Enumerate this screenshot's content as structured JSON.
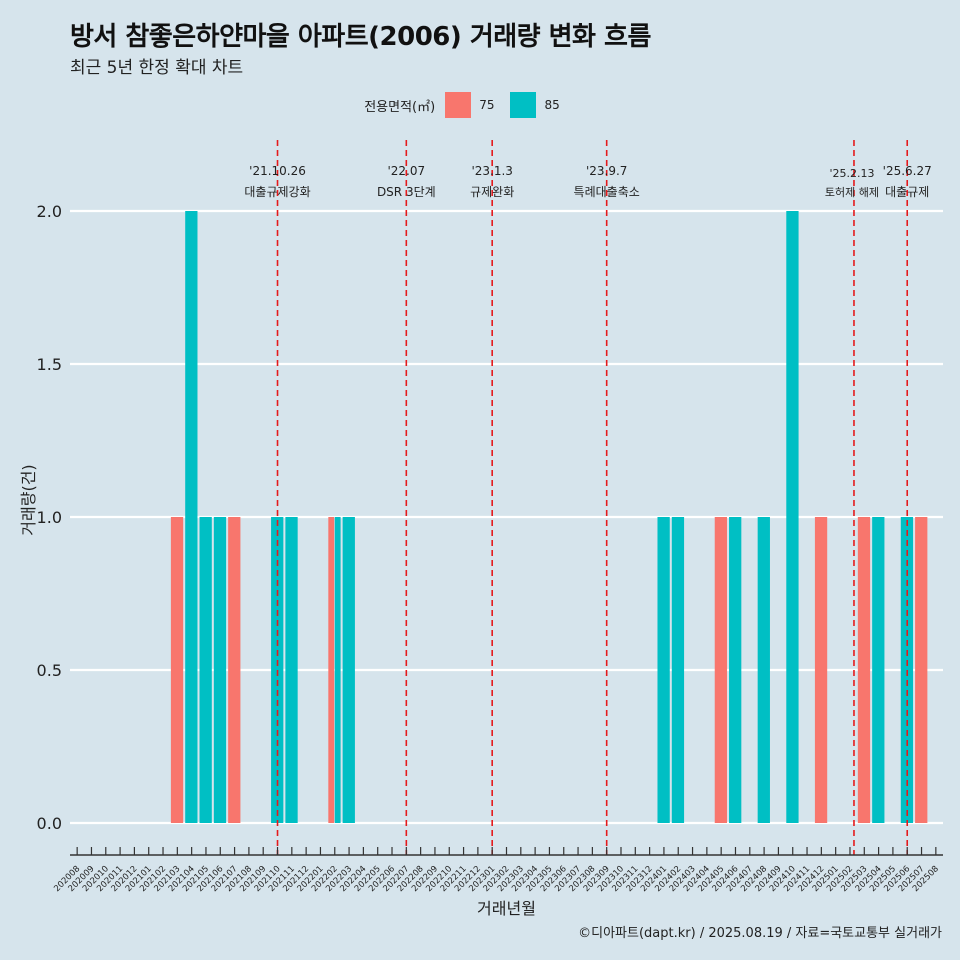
{
  "title": "방서 참좋은하얀마을 아파트(2006) 거래량 변화 흐름",
  "subtitle": "최근 5년 한정 확대 차트",
  "legend": {
    "title": "전용면적(㎡)",
    "items": [
      {
        "label": "75",
        "color": "#f8766d"
      },
      {
        "label": "85",
        "color": "#00bfc4"
      }
    ]
  },
  "caption": "©디아파트(dapt.kr) / 2025.08.19 / 자료=국토교통부 실거래가",
  "chart_data": {
    "type": "bar",
    "xlabel": "거래년월",
    "ylabel": "거래량(건)",
    "ylim": [
      0,
      2
    ],
    "yticks": [
      "0.0",
      "0.5",
      "1.0",
      "1.5",
      "2.0"
    ],
    "grid": true,
    "legend_position": "top",
    "categories": [
      "202008",
      "202009",
      "202010",
      "202011",
      "202012",
      "202101",
      "202102",
      "202103",
      "202104",
      "202105",
      "202106",
      "202107",
      "202108",
      "202109",
      "202110",
      "202111",
      "202112",
      "202201",
      "202202",
      "202203",
      "202204",
      "202205",
      "202206",
      "202207",
      "202208",
      "202209",
      "202210",
      "202211",
      "202212",
      "202301",
      "202302",
      "202303",
      "202304",
      "202305",
      "202306",
      "202307",
      "202308",
      "202309",
      "202310",
      "202311",
      "202312",
      "202401",
      "202402",
      "202403",
      "202404",
      "202405",
      "202406",
      "202407",
      "202408",
      "202409",
      "202410",
      "202411",
      "202412",
      "202501",
      "202502",
      "202503",
      "202504",
      "202505",
      "202506",
      "202507",
      "202508"
    ],
    "series": [
      {
        "name": "75",
        "color": "#f8766d",
        "values": {
          "202103": 1,
          "202107": 1,
          "202202": 1,
          "202405": 1,
          "202412": 1,
          "202503": 1,
          "202507": 1
        }
      },
      {
        "name": "85",
        "color": "#00bfc4",
        "values": {
          "202104": 2,
          "202105": 1,
          "202106": 1,
          "202110": 1,
          "202111": 1,
          "202202": 1,
          "202203": 1,
          "202401": 1,
          "202402": 1,
          "202406": 1,
          "202408": 1,
          "202410": 2,
          "202504": 1,
          "202506": 1
        }
      }
    ],
    "annotations": [
      {
        "date": "202110",
        "label": "'21.10.26",
        "text": "대출규제강화"
      },
      {
        "date": "202207",
        "label": "'22.07",
        "text": "DSR 3단계"
      },
      {
        "date": "202301",
        "label": "'23.1.3",
        "text": "규제완화"
      },
      {
        "date": "202309",
        "label": "'23.9.7",
        "text": "특례대출축소"
      },
      {
        "date": "202502",
        "label": "'25.2.13",
        "text": "토허제 해제"
      },
      {
        "date": "202506",
        "label": "'25.6.27",
        "text": "대출규제"
      }
    ]
  }
}
